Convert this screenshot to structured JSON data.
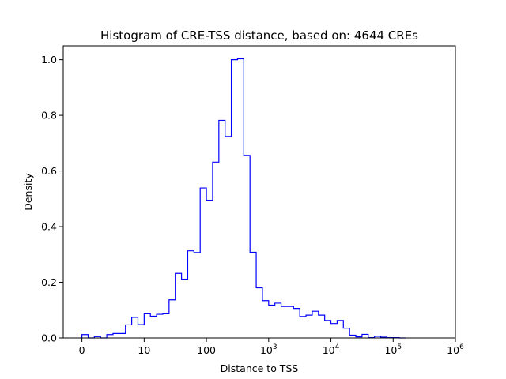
{
  "chart_data": {
    "type": "histogram",
    "title": "Histogram of CRE-TSS distance, based on: 4644 CREs",
    "xlabel": "Distance to TSS",
    "ylabel": "Density",
    "x_scale": "log-like (with 0 shown at left)",
    "ylim": [
      0.0,
      1.05
    ],
    "y_ticks": [
      "0.0",
      "0.2",
      "0.4",
      "0.6",
      "0.8",
      "1.0"
    ],
    "x_ticks": [
      {
        "text": "0",
        "base": "",
        "exp": "",
        "log10": -1
      },
      {
        "text": "10",
        "base": "",
        "exp": "",
        "log10": 0
      },
      {
        "text": "100",
        "base": "",
        "exp": "",
        "log10": 1
      },
      {
        "text": "",
        "base": "10",
        "exp": "3",
        "log10": 2
      },
      {
        "text": "",
        "base": "10",
        "exp": "4",
        "log10": 3
      },
      {
        "text": "",
        "base": "10",
        "exp": "5",
        "log10": 4
      },
      {
        "text": "",
        "base": "10",
        "exp": "6",
        "log10": 5
      }
    ],
    "step_color": "#0000ff",
    "bins": {
      "log10_edges": [
        -1.0,
        -0.9,
        -0.8,
        -0.7,
        -0.6,
        -0.5,
        -0.4,
        -0.3,
        -0.2,
        -0.1,
        0.0,
        0.1,
        0.2,
        0.3,
        0.4,
        0.5,
        0.6,
        0.7,
        0.8,
        0.9,
        1.0,
        1.1,
        1.2,
        1.3,
        1.4,
        1.5,
        1.6,
        1.7,
        1.8,
        1.9,
        2.0,
        2.1,
        2.2,
        2.3,
        2.4,
        2.5,
        2.6,
        2.7,
        2.8,
        2.9,
        3.0,
        3.1,
        3.2,
        3.3,
        3.4,
        3.5,
        3.6,
        3.7,
        3.8,
        3.9,
        4.0,
        4.1,
        4.2
      ],
      "density": [
        0.012,
        0.0,
        0.005,
        0.0,
        0.012,
        0.016,
        0.016,
        0.047,
        0.074,
        0.048,
        0.087,
        0.078,
        0.085,
        0.087,
        0.137,
        0.232,
        0.211,
        0.313,
        0.307,
        0.539,
        0.495,
        0.632,
        0.782,
        0.724,
        1.0,
        1.003,
        0.656,
        0.308,
        0.18,
        0.134,
        0.118,
        0.125,
        0.113,
        0.113,
        0.106,
        0.077,
        0.082,
        0.096,
        0.082,
        0.063,
        0.052,
        0.063,
        0.035,
        0.01,
        0.004,
        0.013,
        0.001,
        0.006,
        0.003,
        0.001,
        0.001,
        0.0
      ]
    }
  }
}
